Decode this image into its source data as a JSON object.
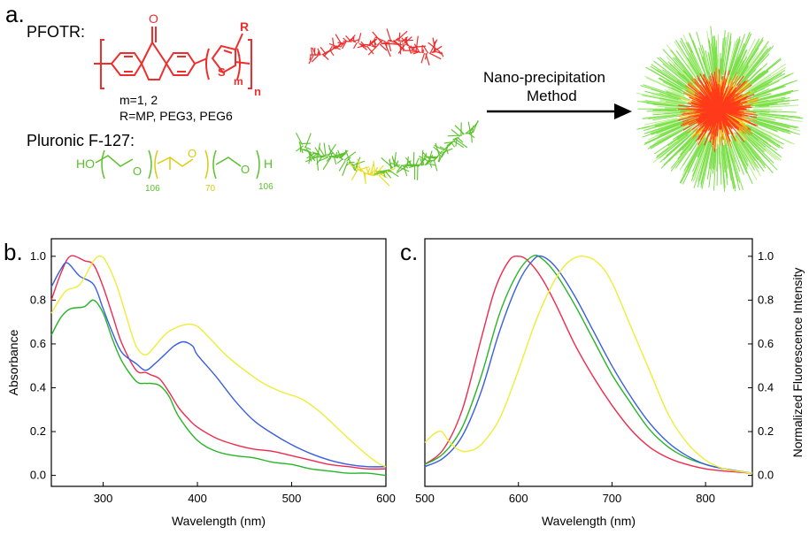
{
  "panel_a": {
    "label": "a.",
    "pfotr_label": "PFOTR:",
    "ketone_O": "O",
    "substituent_R": "R",
    "sulfur": "S",
    "sub_m": "m",
    "sub_n": "n",
    "m_values": "m=1, 2",
    "r_values": "R=MP, PEG3, PEG6",
    "pluronic_label": "Pluronic F-127:",
    "ho": "HO",
    "o1": "O",
    "o2": "O",
    "o3": "O",
    "h_end": "H",
    "sub_106a": "106",
    "sub_70": "70",
    "sub_106b": "106",
    "arrow_text_1": "Nano-precipitation",
    "arrow_text_2": "Method",
    "colors": {
      "polymer": "#ee2d2d",
      "peo": "#5ac12a",
      "ppo": "#d8cc10",
      "micelle_core": "#ff3a1a",
      "micelle_shell": "#7be04a"
    }
  },
  "chart_data": [
    {
      "panel": "b.",
      "type": "line",
      "xlabel": "Wavelength (nm)",
      "ylabel": "Absorbance",
      "xlim": [
        245,
        600
      ],
      "ylim": [
        -0.05,
        1.08
      ],
      "xticks": [
        300,
        400,
        500,
        600
      ],
      "yticks": [
        0.0,
        0.2,
        0.4,
        0.6,
        0.8,
        1.0
      ],
      "grid": false,
      "series": [
        {
          "color": "#ee2a4e",
          "x": [
            245,
            255,
            265,
            280,
            290,
            300,
            310,
            320,
            335,
            345,
            350,
            360,
            370,
            380,
            390,
            400,
            420,
            440,
            460,
            480,
            500,
            520,
            540,
            560,
            580,
            600
          ],
          "y": [
            0.8,
            0.92,
            1.0,
            0.98,
            0.96,
            0.86,
            0.73,
            0.6,
            0.48,
            0.47,
            0.46,
            0.44,
            0.38,
            0.31,
            0.26,
            0.22,
            0.17,
            0.14,
            0.12,
            0.11,
            0.09,
            0.07,
            0.05,
            0.04,
            0.03,
            0.03
          ]
        },
        {
          "color": "#3a5ee0",
          "x": [
            245,
            255,
            262,
            275,
            290,
            300,
            310,
            320,
            335,
            345,
            355,
            365,
            375,
            385,
            395,
            400,
            420,
            440,
            460,
            480,
            500,
            520,
            540,
            560,
            580,
            600
          ],
          "y": [
            0.86,
            0.94,
            0.97,
            0.91,
            0.87,
            0.76,
            0.65,
            0.56,
            0.51,
            0.48,
            0.51,
            0.55,
            0.59,
            0.61,
            0.59,
            0.55,
            0.45,
            0.34,
            0.25,
            0.19,
            0.14,
            0.1,
            0.07,
            0.05,
            0.04,
            0.04
          ]
        },
        {
          "color": "#eded3a",
          "x": [
            245,
            260,
            275,
            290,
            298,
            305,
            315,
            325,
            335,
            345,
            355,
            365,
            375,
            390,
            400,
            410,
            430,
            450,
            470,
            490,
            510,
            530,
            550,
            570,
            590,
            600
          ],
          "y": [
            0.74,
            0.84,
            0.87,
            0.98,
            1.0,
            0.96,
            0.86,
            0.72,
            0.59,
            0.55,
            0.59,
            0.64,
            0.67,
            0.69,
            0.68,
            0.64,
            0.55,
            0.48,
            0.42,
            0.38,
            0.35,
            0.29,
            0.21,
            0.13,
            0.06,
            0.04
          ]
        },
        {
          "color": "#27b527",
          "x": [
            245,
            255,
            265,
            280,
            290,
            300,
            310,
            320,
            335,
            345,
            350,
            360,
            370,
            380,
            400,
            420,
            440,
            460,
            480,
            500,
            520,
            540,
            560,
            580,
            600
          ],
          "y": [
            0.64,
            0.72,
            0.76,
            0.77,
            0.8,
            0.74,
            0.62,
            0.52,
            0.43,
            0.42,
            0.42,
            0.41,
            0.36,
            0.27,
            0.16,
            0.11,
            0.09,
            0.08,
            0.06,
            0.05,
            0.03,
            0.02,
            0.01,
            0.01,
            0.0
          ]
        }
      ]
    },
    {
      "panel": "c.",
      "type": "line",
      "xlabel": "Wavelength (nm)",
      "ylabel": "Normalized Fluorescence Intensity",
      "xlim": [
        500,
        850
      ],
      "ylim": [
        -0.05,
        1.08
      ],
      "xticks": [
        500,
        600,
        700,
        800
      ],
      "yticks": [
        0.0,
        0.2,
        0.4,
        0.6,
        0.8,
        1.0
      ],
      "yaxis_side": "right",
      "grid": false,
      "series": [
        {
          "color": "#ee2a4e",
          "x": [
            500,
            520,
            540,
            560,
            575,
            590,
            600,
            610,
            625,
            640,
            660,
            680,
            700,
            720,
            740,
            760,
            780,
            800,
            820,
            850
          ],
          "y": [
            0.05,
            0.12,
            0.3,
            0.62,
            0.85,
            0.98,
            1.0,
            0.98,
            0.9,
            0.78,
            0.6,
            0.45,
            0.32,
            0.21,
            0.13,
            0.08,
            0.05,
            0.03,
            0.02,
            0.01
          ]
        },
        {
          "color": "#27b527",
          "x": [
            500,
            520,
            540,
            560,
            580,
            600,
            615,
            625,
            640,
            660,
            680,
            700,
            720,
            740,
            760,
            780,
            800,
            820,
            850
          ],
          "y": [
            0.05,
            0.1,
            0.22,
            0.45,
            0.74,
            0.93,
            1.0,
            0.99,
            0.92,
            0.78,
            0.62,
            0.46,
            0.33,
            0.21,
            0.13,
            0.08,
            0.05,
            0.03,
            0.01
          ]
        },
        {
          "color": "#3a5ee0",
          "x": [
            500,
            520,
            540,
            560,
            580,
            600,
            615,
            625,
            640,
            660,
            680,
            700,
            720,
            740,
            760,
            780,
            800,
            820,
            850
          ],
          "y": [
            0.04,
            0.08,
            0.18,
            0.38,
            0.66,
            0.88,
            0.98,
            1.0,
            0.95,
            0.82,
            0.66,
            0.5,
            0.36,
            0.24,
            0.15,
            0.09,
            0.05,
            0.03,
            0.01
          ]
        },
        {
          "color": "#eded3a",
          "x": [
            500,
            510,
            518,
            525,
            535,
            545,
            560,
            580,
            600,
            620,
            640,
            655,
            670,
            685,
            700,
            720,
            740,
            760,
            780,
            800,
            820,
            850
          ],
          "y": [
            0.15,
            0.19,
            0.2,
            0.16,
            0.12,
            0.11,
            0.14,
            0.26,
            0.48,
            0.72,
            0.9,
            0.98,
            1.0,
            0.97,
            0.88,
            0.68,
            0.48,
            0.28,
            0.15,
            0.07,
            0.03,
            0.01
          ]
        }
      ]
    }
  ]
}
